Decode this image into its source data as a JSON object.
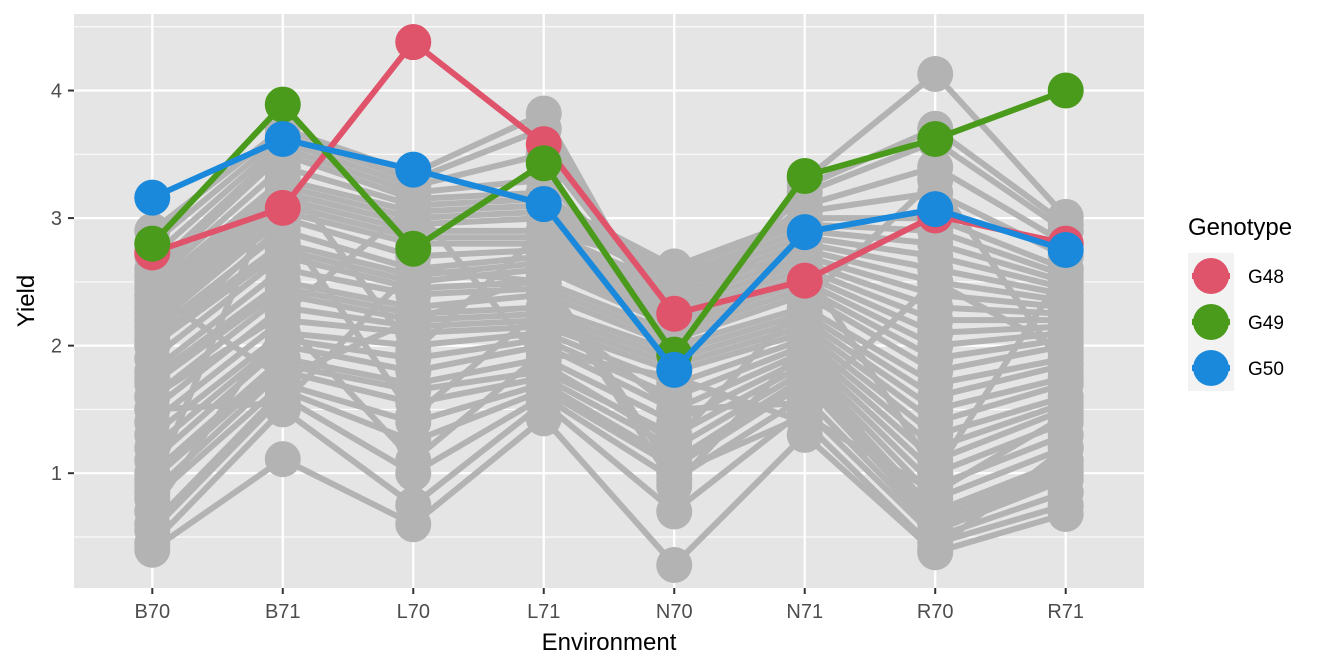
{
  "chart_data": {
    "type": "line",
    "xlabel": "Environment",
    "ylabel": "Yield",
    "categories": [
      "B70",
      "B71",
      "L70",
      "L71",
      "N70",
      "N71",
      "R70",
      "R71"
    ],
    "ylim": [
      0.1,
      4.6
    ],
    "yticks": [
      1,
      2,
      3,
      4
    ],
    "grid": true,
    "legend": {
      "title": "Genotype",
      "position": "right"
    },
    "colors": {
      "panel": "#E5E5E5",
      "grid": "#FFFFFF",
      "background_series": "#B3B3B3",
      "G48": "#DF536B",
      "G49": "#4A9A1C",
      "G50": "#1A89DB"
    },
    "series": [
      {
        "name": "G48",
        "values": [
          2.73,
          3.08,
          4.38,
          3.58,
          2.25,
          2.51,
          3.02,
          2.8
        ]
      },
      {
        "name": "G49",
        "values": [
          2.8,
          3.89,
          2.76,
          3.43,
          1.93,
          3.33,
          3.62,
          4.0
        ]
      },
      {
        "name": "G50",
        "values": [
          3.16,
          3.62,
          3.38,
          3.11,
          1.81,
          2.89,
          3.07,
          2.75
        ]
      }
    ],
    "background_series": [
      [
        0.4,
        1.11,
        0.6,
        1.43,
        0.28,
        1.3,
        0.38,
        0.68
      ],
      [
        0.45,
        1.5,
        0.75,
        1.55,
        0.7,
        1.5,
        0.5,
        0.85
      ],
      [
        0.55,
        1.6,
        1.0,
        1.6,
        0.95,
        1.6,
        0.55,
        0.95
      ],
      [
        0.6,
        1.65,
        1.25,
        1.65,
        1.05,
        1.7,
        0.6,
        1.0
      ],
      [
        0.8,
        1.7,
        1.4,
        1.7,
        1.1,
        1.75,
        0.65,
        1.05
      ],
      [
        0.85,
        1.8,
        1.55,
        1.75,
        1.2,
        1.8,
        0.7,
        1.1
      ],
      [
        0.95,
        1.85,
        1.65,
        1.8,
        1.3,
        1.85,
        0.8,
        1.2
      ],
      [
        1.0,
        1.9,
        1.7,
        1.9,
        1.4,
        1.9,
        0.9,
        1.3
      ],
      [
        1.1,
        2.0,
        1.8,
        2.0,
        1.5,
        1.95,
        1.0,
        1.4
      ],
      [
        1.2,
        2.05,
        1.9,
        2.05,
        1.6,
        2.0,
        1.1,
        1.5
      ],
      [
        1.3,
        2.1,
        2.0,
        2.1,
        1.7,
        2.05,
        1.2,
        1.55
      ],
      [
        1.4,
        2.2,
        2.1,
        2.15,
        1.8,
        2.1,
        1.3,
        1.6
      ],
      [
        1.5,
        2.3,
        2.15,
        2.2,
        1.85,
        2.15,
        1.4,
        1.7
      ],
      [
        1.6,
        2.4,
        2.2,
        2.25,
        1.9,
        2.2,
        1.5,
        1.75
      ],
      [
        1.7,
        2.45,
        2.25,
        2.3,
        1.95,
        2.25,
        1.6,
        1.85
      ],
      [
        1.75,
        2.5,
        2.3,
        2.4,
        2.0,
        2.3,
        1.7,
        1.9
      ],
      [
        1.8,
        2.6,
        2.4,
        2.45,
        2.05,
        2.4,
        1.8,
        2.0
      ],
      [
        1.9,
        2.7,
        2.45,
        2.5,
        2.1,
        2.45,
        1.9,
        2.05
      ],
      [
        2.0,
        2.75,
        2.5,
        2.6,
        2.15,
        2.5,
        2.0,
        2.1
      ],
      [
        2.05,
        2.8,
        2.55,
        2.65,
        2.2,
        2.55,
        2.1,
        2.15
      ],
      [
        2.1,
        2.9,
        2.6,
        2.7,
        2.25,
        2.6,
        2.2,
        2.2
      ],
      [
        2.15,
        3.0,
        2.7,
        2.75,
        2.3,
        2.65,
        2.3,
        2.25
      ],
      [
        2.2,
        3.05,
        2.8,
        2.8,
        2.35,
        2.7,
        2.4,
        2.3
      ],
      [
        2.25,
        3.1,
        2.85,
        2.85,
        2.4,
        2.75,
        2.5,
        2.35
      ],
      [
        2.3,
        3.15,
        2.9,
        2.9,
        2.45,
        2.8,
        2.6,
        2.4
      ],
      [
        2.35,
        3.2,
        2.95,
        3.0,
        2.5,
        2.85,
        2.7,
        2.45
      ],
      [
        2.4,
        3.25,
        3.0,
        3.05,
        2.55,
        2.9,
        2.8,
        2.5
      ],
      [
        2.45,
        3.3,
        3.05,
        3.1,
        2.6,
        2.95,
        2.9,
        2.55
      ],
      [
        2.5,
        3.4,
        3.1,
        3.15,
        2.62,
        3.0,
        3.0,
        2.6
      ],
      [
        2.55,
        3.5,
        3.15,
        3.2,
        2.4,
        3.05,
        3.2,
        2.7
      ],
      [
        2.6,
        3.55,
        3.2,
        3.3,
        2.3,
        3.1,
        3.4,
        2.8
      ],
      [
        2.7,
        3.6,
        3.25,
        3.5,
        2.2,
        3.2,
        3.6,
        2.9
      ],
      [
        2.8,
        3.65,
        3.3,
        3.7,
        2.1,
        3.25,
        3.7,
        2.95
      ],
      [
        2.9,
        3.7,
        3.35,
        3.82,
        2.0,
        3.3,
        4.13,
        3.01
      ],
      [
        0.7,
        2.2,
        1.1,
        1.95,
        1.75,
        1.4,
        0.4,
        1.2
      ],
      [
        1.5,
        1.55,
        2.6,
        2.5,
        0.9,
        2.0,
        0.45,
        0.75
      ],
      [
        2.0,
        2.95,
        1.45,
        2.3,
        1.5,
        1.55,
        2.5,
        1.95
      ],
      [
        0.9,
        3.35,
        1.95,
        2.9,
        2.62,
        2.62,
        1.0,
        2.6
      ],
      [
        1.6,
        2.25,
        3.1,
        1.85,
        1.25,
        2.35,
        3.3,
        1.8
      ],
      [
        2.4,
        1.75,
        2.2,
        2.55,
        1.0,
        1.45,
        0.85,
        1.45
      ]
    ]
  }
}
